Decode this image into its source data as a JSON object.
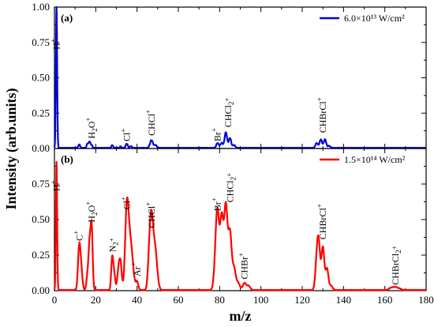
{
  "chart_data": {
    "type": "line",
    "xlabel": "m/z",
    "ylabel": "Intensity (arb.units)",
    "xlim": [
      0,
      180
    ],
    "x_ticks": [
      0,
      20,
      40,
      60,
      80,
      100,
      120,
      140,
      160,
      180
    ],
    "ylim": [
      0,
      1.0
    ],
    "grid": false,
    "panels": [
      {
        "label": "(a)",
        "y_ticks": [
          "0.00",
          "0.25",
          "0.50",
          "0.75",
          "1.00"
        ],
        "legend_position": "top-right",
        "series": [
          {
            "name": "6.0×10¹³ W/cm²",
            "color": "#0000dd",
            "peaks": [
              {
                "x": 1,
                "y": 1.0,
                "w": 0.3
              },
              {
                "x": 12,
                "y": 0.025,
                "w": 0.4
              },
              {
                "x": 16,
                "y": 0.03,
                "w": 0.4
              },
              {
                "x": 17,
                "y": 0.045,
                "w": 0.4
              },
              {
                "x": 18,
                "y": 0.02,
                "w": 0.4
              },
              {
                "x": 28,
                "y": 0.02,
                "w": 0.4
              },
              {
                "x": 32,
                "y": 0.01,
                "w": 0.4
              },
              {
                "x": 35,
                "y": 0.03,
                "w": 0.5
              },
              {
                "x": 37,
                "y": 0.012,
                "w": 0.5
              },
              {
                "x": 47,
                "y": 0.055,
                "w": 0.7
              },
              {
                "x": 49,
                "y": 0.02,
                "w": 0.6
              },
              {
                "x": 79,
                "y": 0.035,
                "w": 0.6
              },
              {
                "x": 81,
                "y": 0.035,
                "w": 0.6
              },
              {
                "x": 83,
                "y": 0.11,
                "w": 0.6
              },
              {
                "x": 85,
                "y": 0.07,
                "w": 0.6
              },
              {
                "x": 87,
                "y": 0.02,
                "w": 0.6
              },
              {
                "x": 127,
                "y": 0.035,
                "w": 0.6
              },
              {
                "x": 129,
                "y": 0.06,
                "w": 0.6
              },
              {
                "x": 131,
                "y": 0.06,
                "w": 0.6
              },
              {
                "x": 133,
                "y": 0.015,
                "w": 0.6
              }
            ]
          }
        ],
        "annotations": [
          {
            "text": "H",
            "sup": "+",
            "x": 1,
            "y": 0.7
          },
          {
            "text": "H",
            "sub": "2",
            "rest": "O",
            "sup": "+",
            "x": 18,
            "y": 0.07
          },
          {
            "text": "Cl",
            "sup": "+",
            "x": 35,
            "y": 0.05
          },
          {
            "text": "CHCl",
            "sup": "+",
            "x": 47,
            "y": 0.09
          },
          {
            "text": "Br",
            "sup": "+",
            "x": 79,
            "y": 0.05
          },
          {
            "text": "CHCl",
            "sub": "2",
            "sup": "+",
            "x": 84,
            "y": 0.15
          },
          {
            "text": "CHBrCl",
            "sup": "+",
            "x": 130,
            "y": 0.11
          }
        ]
      },
      {
        "label": "(b)",
        "y_ticks": [
          "0.00",
          "0.25",
          "0.50",
          "0.75"
        ],
        "legend_position": "top-right",
        "series": [
          {
            "name": "1.5×10¹⁴ W/cm²",
            "color": "#ff0000",
            "peaks": [
              {
                "x": 1,
                "y": 0.9,
                "w": 0.3
              },
              {
                "x": 12,
                "y": 0.3,
                "w": 0.6
              },
              {
                "x": 13,
                "y": 0.12,
                "w": 0.6
              },
              {
                "x": 16,
                "y": 0.1,
                "w": 0.5
              },
              {
                "x": 17,
                "y": 0.3,
                "w": 0.5
              },
              {
                "x": 18,
                "y": 0.44,
                "w": 0.5
              },
              {
                "x": 28,
                "y": 0.23,
                "w": 0.5
              },
              {
                "x": 29,
                "y": 0.1,
                "w": 0.5
              },
              {
                "x": 31,
                "y": 0.13,
                "w": 0.6
              },
              {
                "x": 32,
                "y": 0.18,
                "w": 0.6
              },
              {
                "x": 35,
                "y": 0.53,
                "w": 0.8
              },
              {
                "x": 36,
                "y": 0.2,
                "w": 0.8
              },
              {
                "x": 37,
                "y": 0.2,
                "w": 0.8
              },
              {
                "x": 38,
                "y": 0.1,
                "w": 0.8
              },
              {
                "x": 40,
                "y": 0.06,
                "w": 0.6
              },
              {
                "x": 46,
                "y": 0.25,
                "w": 0.7
              },
              {
                "x": 47,
                "y": 0.4,
                "w": 0.7
              },
              {
                "x": 48,
                "y": 0.2,
                "w": 0.7
              },
              {
                "x": 49,
                "y": 0.2,
                "w": 0.7
              },
              {
                "x": 50,
                "y": 0.05,
                "w": 0.7
              },
              {
                "x": 78,
                "y": 0.15,
                "w": 0.8
              },
              {
                "x": 79,
                "y": 0.49,
                "w": 0.8
              },
              {
                "x": 81,
                "y": 0.5,
                "w": 0.8
              },
              {
                "x": 83,
                "y": 0.58,
                "w": 0.8
              },
              {
                "x": 85,
                "y": 0.4,
                "w": 0.8
              },
              {
                "x": 87,
                "y": 0.15,
                "w": 0.8
              },
              {
                "x": 89,
                "y": 0.05,
                "w": 0.8
              },
              {
                "x": 92,
                "y": 0.05,
                "w": 0.8
              },
              {
                "x": 94,
                "y": 0.03,
                "w": 0.8
              },
              {
                "x": 127,
                "y": 0.18,
                "w": 0.7
              },
              {
                "x": 128,
                "y": 0.3,
                "w": 0.7
              },
              {
                "x": 130,
                "y": 0.3,
                "w": 0.7
              },
              {
                "x": 132,
                "y": 0.15,
                "w": 0.7
              },
              {
                "x": 134,
                "y": 0.03,
                "w": 0.7
              },
              {
                "x": 163,
                "y": 0.015,
                "w": 1.0
              },
              {
                "x": 165,
                "y": 0.02,
                "w": 1.0
              },
              {
                "x": 167,
                "y": 0.01,
                "w": 1.0
              }
            ]
          }
        ],
        "annotations": [
          {
            "text": "H",
            "sup": "+",
            "x": 1,
            "y": 0.7
          },
          {
            "text": "C",
            "sup": "+",
            "x": 12,
            "y": 0.35
          },
          {
            "text": "H",
            "sub": "2",
            "rest": "O",
            "sup": "+",
            "x": 18,
            "y": 0.48
          },
          {
            "text": "N",
            "sub": "2",
            "sup": "+",
            "x": 28,
            "y": 0.27
          },
          {
            "text": "Cl",
            "sup": "+",
            "x": 35,
            "y": 0.57
          },
          {
            "text": "Ar",
            "sup": "+",
            "x": 40,
            "y": 0.1
          },
          {
            "text": "CHCl",
            "sup": "+",
            "x": 47,
            "y": 0.44
          },
          {
            "text": "Br",
            "sup": "+",
            "x": 79,
            "y": 0.56
          },
          {
            "text": "CHCl",
            "sub": "2",
            "sup": "+",
            "x": 85,
            "y": 0.62
          },
          {
            "text": "CHBr",
            "sup": "+",
            "x": 92,
            "y": 0.08
          },
          {
            "text": "CHBrCl",
            "sup": "+",
            "x": 130,
            "y": 0.36
          },
          {
            "text": "CHBrCl",
            "sub": "2",
            "sup": "+",
            "x": 165,
            "y": 0.04
          }
        ]
      }
    ]
  }
}
